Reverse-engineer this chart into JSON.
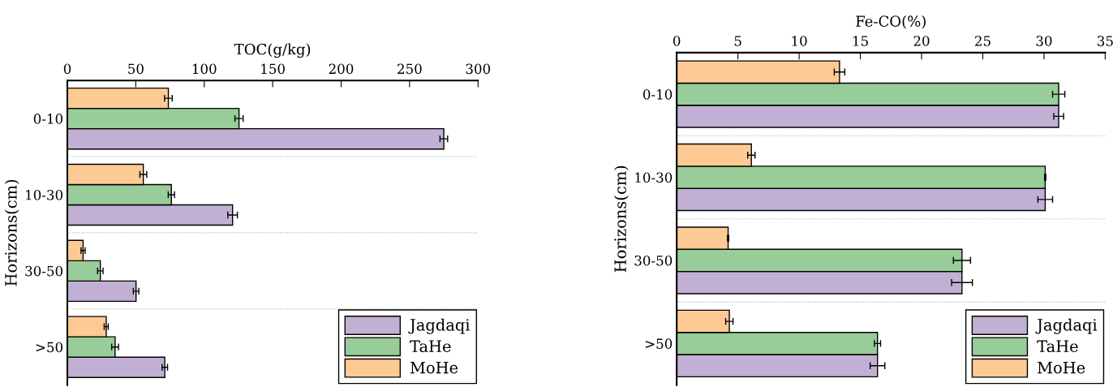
{
  "chart_data": [
    {
      "type": "bar",
      "orientation": "horizontal",
      "xlabel": "TOC(g/kg)",
      "ylabel": "Horizons(cm)",
      "categories": [
        "0-10",
        "10-30",
        "30-50",
        ">50"
      ],
      "xlim": [
        0,
        300
      ],
      "xticks": [
        0,
        50,
        100,
        150,
        200,
        250,
        300
      ],
      "grid": "y",
      "legend": "bottom right",
      "series": [
        {
          "name": "Jagdaqi",
          "color": "#c2b0d4",
          "values": [
            275,
            120.7,
            50.2,
            71.2
          ],
          "errors": [
            2.8,
            3.5,
            2,
            2
          ]
        },
        {
          "name": "TaHe",
          "color": "#98cc98",
          "values": [
            125.4,
            76,
            24.1,
            34.9
          ],
          "errors": [
            3,
            2.3,
            2,
            2.5
          ]
        },
        {
          "name": "MoHe",
          "color": "#fdca94",
          "values": [
            73.8,
            55.5,
            11.5,
            28.4
          ],
          "errors": [
            2.8,
            2.5,
            1.5,
            1.5
          ]
        }
      ]
    },
    {
      "type": "bar",
      "orientation": "horizontal",
      "xlabel": "Fe-CO(%)",
      "ylabel": "Horizons(cm)",
      "categories": [
        "0-10",
        "10-30",
        "30-50",
        ">50"
      ],
      "xlim": [
        0,
        35
      ],
      "xticks": [
        0,
        5,
        10,
        15,
        20,
        25,
        30,
        35
      ],
      "grid": "y",
      "legend": "bottom right",
      "series": [
        {
          "name": "Jagdaqi",
          "color": "#c2b0d4",
          "values": [
            31.2,
            30.1,
            23.3,
            16.4
          ],
          "errors": [
            0.4,
            0.6,
            0.85,
            0.6
          ]
        },
        {
          "name": "TaHe",
          "color": "#98cc98",
          "values": [
            31.2,
            30.1,
            23.3,
            16.4
          ],
          "errors": [
            0.5,
            0.05,
            0.7,
            0.25
          ]
        },
        {
          "name": "MoHe",
          "color": "#fdca94",
          "values": [
            13.3,
            6.1,
            4.2,
            4.3
          ],
          "errors": [
            0.43,
            0.3,
            0.05,
            0.3
          ]
        }
      ]
    }
  ]
}
